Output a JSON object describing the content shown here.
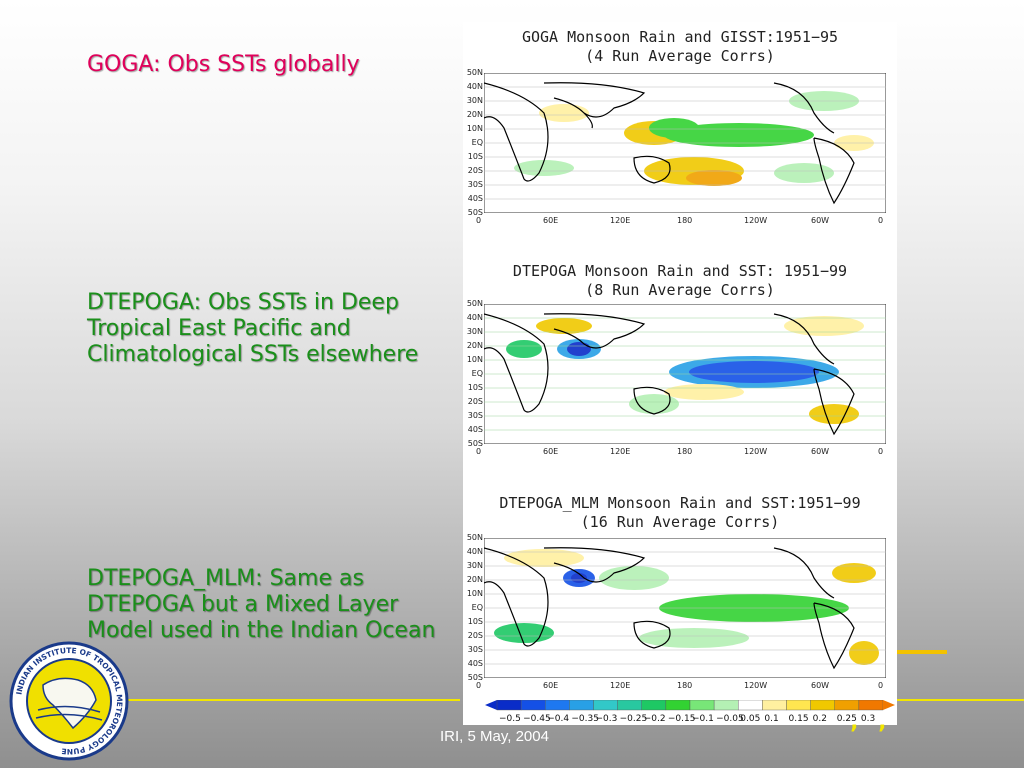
{
  "captions": {
    "goga": "GOGA: Obs SSTs globally",
    "dtepoga": "DTEPOGA: Obs SSTs in Deep Tropical East Pacific and Climatological SSTs elsewhere",
    "dtepoga_mlm": "DTEPOGA_MLM: Same as DTEPOGA but a Mixed Layer Model used in the Indian Ocean"
  },
  "panels": [
    {
      "title_line1": "GOGA Monsoon Rain and GISST:1951−95",
      "title_line2": "(4 Run Average Corrs)"
    },
    {
      "title_line1": "DTEPOGA Monsoon Rain and SST: 1951−99",
      "title_line2": "(8 Run Average Corrs)"
    },
    {
      "title_line1": "DTEPOGA_MLM Monsoon Rain and SST:1951−99",
      "title_line2": "(16 Run Average Corrs)"
    }
  ],
  "lat_labels": [
    "50N",
    "40N",
    "30N",
    "20N",
    "10N",
    "EQ",
    "10S",
    "20S",
    "30S",
    "40S",
    "50S"
  ],
  "lon_labels": [
    "0",
    "60E",
    "120E",
    "180",
    "120W",
    "60W",
    "0"
  ],
  "colorbar": {
    "labels": [
      "−0.5",
      "−0.45",
      "−0.4",
      "−0.35",
      "−0.3",
      "−0.25",
      "−0.2",
      "−0.15",
      "−0.1",
      "−0.05",
      "0.05",
      "0.1",
      "0.15",
      "0.2",
      "0.25",
      "0.3"
    ],
    "colors": [
      "#0a2cc8",
      "#1450e6",
      "#1e78f0",
      "#28a0e6",
      "#32c8c8",
      "#28c8a0",
      "#1ec864",
      "#32d232",
      "#78e678",
      "#b4f0b4",
      "#ffffff",
      "#fff0a0",
      "#ffe650",
      "#f0c800",
      "#f0a000",
      "#f07800"
    ]
  },
  "footer": {
    "text": "IRI, 5 May, 2004",
    "marks": "’ ’"
  },
  "logo": {
    "text": "INDIAN INSTITUTE OF TROPICAL METEOROLOGY PUNE"
  }
}
